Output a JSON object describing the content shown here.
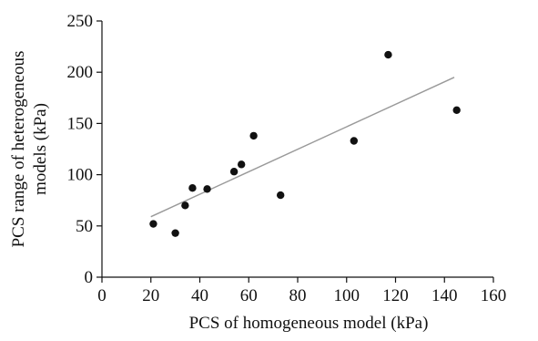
{
  "chart_data": {
    "type": "scatter",
    "title": "",
    "xlabel": "PCS of homogeneous model (kPa)",
    "ylabel_lines": [
      "PCS range of heterogeneous",
      "models (kPa)"
    ],
    "xlim": [
      0,
      160
    ],
    "ylim": [
      0,
      250
    ],
    "xticks": [
      0,
      20,
      40,
      60,
      80,
      100,
      120,
      140,
      160
    ],
    "yticks": [
      0,
      50,
      100,
      150,
      200,
      250
    ],
    "grid": false,
    "legend": "none",
    "series": [
      {
        "points": [
          {
            "x": 21,
            "y": 52
          },
          {
            "x": 30,
            "y": 43
          },
          {
            "x": 34,
            "y": 70
          },
          {
            "x": 37,
            "y": 87
          },
          {
            "x": 43,
            "y": 86
          },
          {
            "x": 54,
            "y": 103
          },
          {
            "x": 57,
            "y": 110
          },
          {
            "x": 62,
            "y": 138
          },
          {
            "x": 73,
            "y": 80
          },
          {
            "x": 103,
            "y": 133
          },
          {
            "x": 117,
            "y": 217
          },
          {
            "x": 145,
            "y": 163
          }
        ],
        "marker_color": "#111111"
      }
    ],
    "trendline": {
      "type": "linear",
      "x_start": 20,
      "y_start": 59,
      "x_end": 144,
      "y_end": 195,
      "color": "#999999"
    },
    "axis_color": "#111111"
  }
}
